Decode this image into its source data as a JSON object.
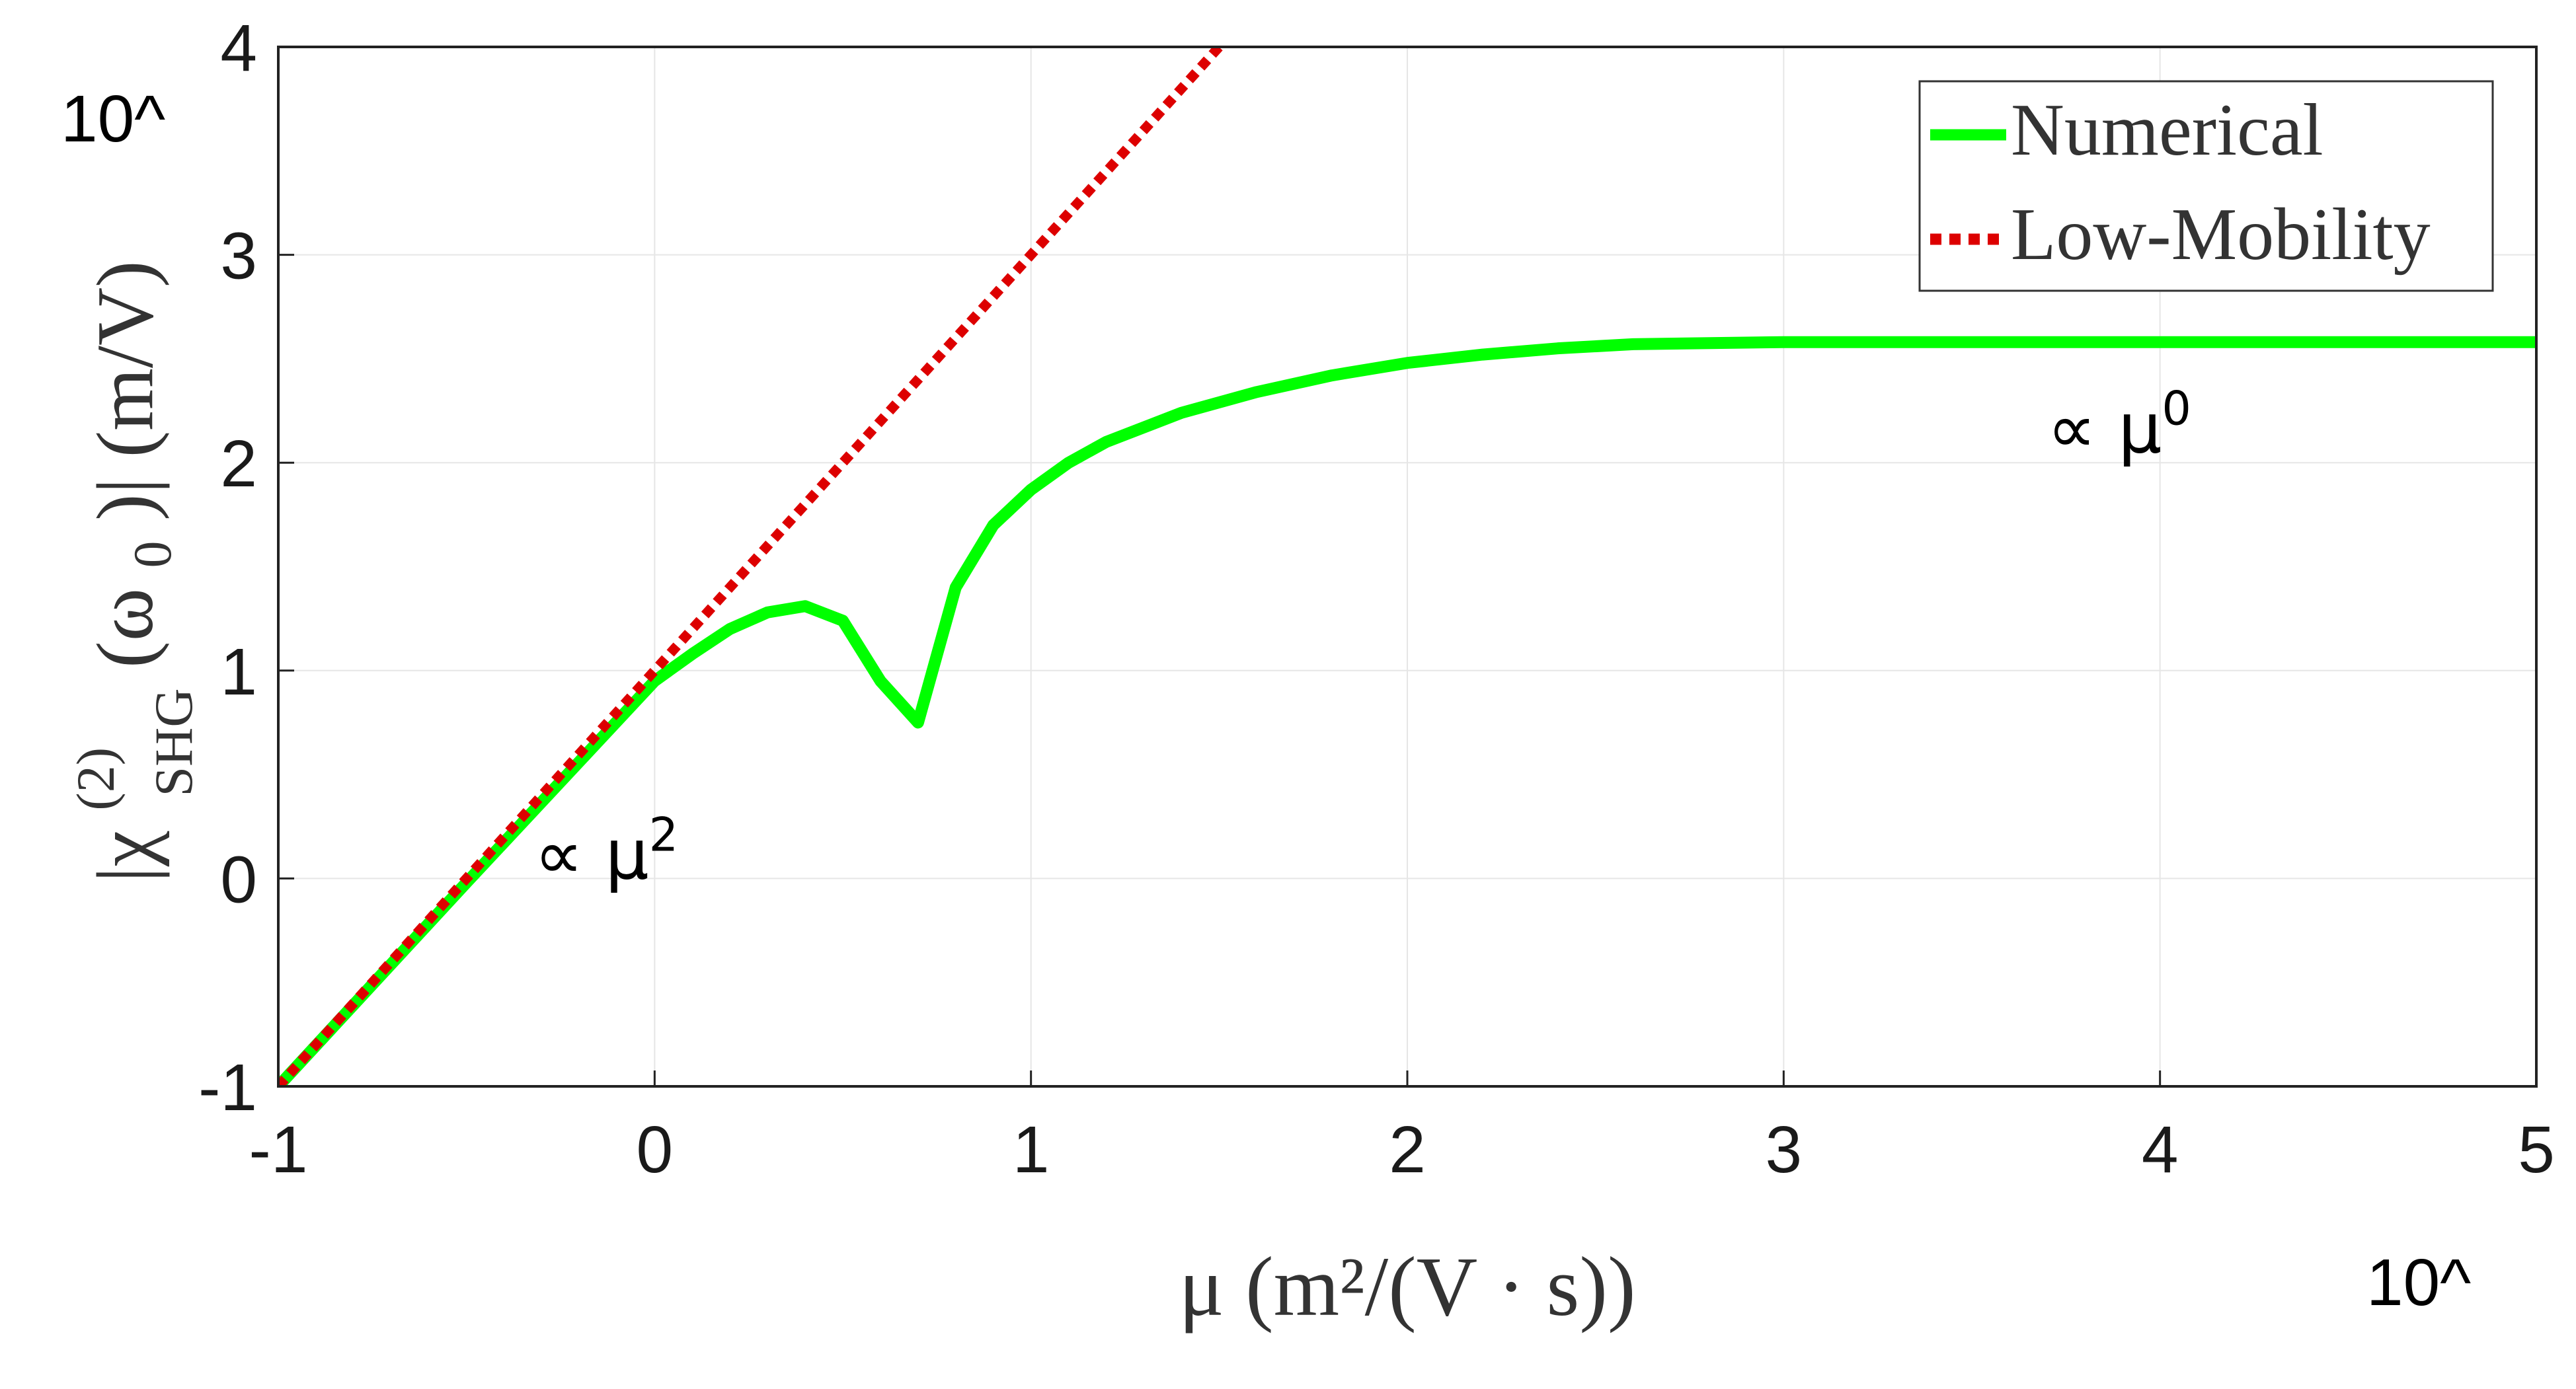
{
  "chart_data": {
    "type": "line",
    "xlabel": "μ (m²/(V · s))",
    "ylabel": "|χ",
    "ylabel_parts": {
      "open": "|χ",
      "superscript": "(2)",
      "subscript": "SHG",
      "argument": "(ω",
      "argument_sub": "0",
      "close": ")| (m/V)"
    },
    "x_multiplier_label": "10^",
    "y_multiplier_label": "10^",
    "xlim": [
      -1,
      5
    ],
    "ylim": [
      -1,
      4
    ],
    "xscale": "log",
    "yscale": "log",
    "x_ticks": [
      "-1",
      "0",
      "1",
      "2",
      "3",
      "4",
      "5"
    ],
    "y_ticks": [
      "-1",
      "0",
      "1",
      "2",
      "3",
      "4"
    ],
    "grid": true,
    "legend_position": "top-right",
    "series": [
      {
        "name": "Numerical",
        "color": "#00ff00",
        "style": "solid",
        "x": [
          -1,
          -0.5,
          0,
          0.1,
          0.2,
          0.3,
          0.4,
          0.5,
          0.6,
          0.7,
          0.8,
          0.9,
          1.0,
          1.1,
          1.2,
          1.4,
          1.6,
          1.8,
          2.0,
          2.2,
          2.4,
          2.6,
          3.0,
          3.5,
          4.0,
          5.0
        ],
        "y": [
          -1,
          -0.02,
          0.95,
          1.08,
          1.2,
          1.28,
          1.31,
          1.24,
          0.95,
          0.75,
          1.4,
          1.7,
          1.87,
          2.0,
          2.1,
          2.24,
          2.34,
          2.42,
          2.48,
          2.52,
          2.55,
          2.57,
          2.58,
          2.58,
          2.58,
          2.58
        ]
      },
      {
        "name": "Low-Mobility",
        "color": "#dd0000",
        "style": "dotted",
        "x": [
          -1,
          1.5
        ],
        "y": [
          -1,
          4
        ]
      }
    ],
    "annotations": [
      {
        "id": "mu2",
        "prefix": "∝ μ",
        "power": "2",
        "x": -0.32,
        "y": 0.0
      },
      {
        "id": "mu0",
        "prefix": "∝ μ",
        "power": "0",
        "x": 3.7,
        "y": 2.05
      }
    ]
  }
}
